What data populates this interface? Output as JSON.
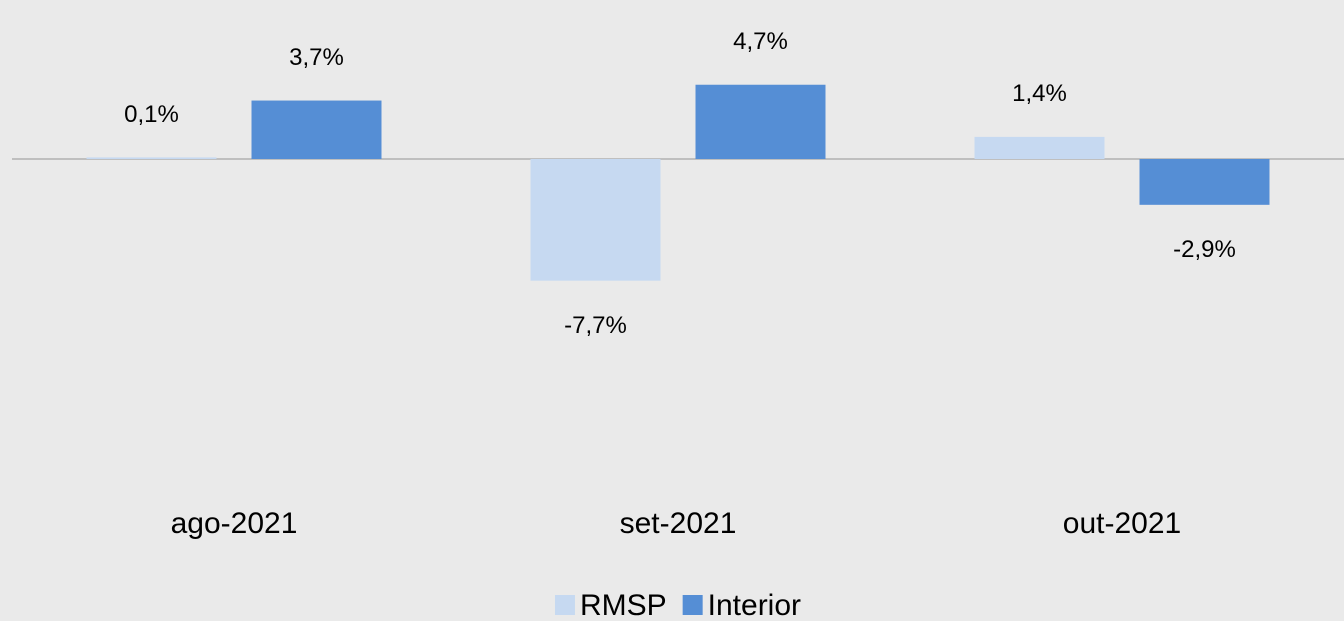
{
  "chart_data": {
    "type": "bar",
    "categories": [
      "ago-2021",
      "set-2021",
      "out-2021"
    ],
    "series": [
      {
        "name": "RMSP",
        "color": "#c6d9f1",
        "values": [
          0.1,
          -7.7,
          1.4
        ],
        "value_labels": [
          "0,1%",
          "-7,7%",
          "1,4%"
        ]
      },
      {
        "name": "Interior",
        "color": "#558ed5",
        "values": [
          3.7,
          4.7,
          -2.9
        ],
        "value_labels": [
          "3,7%",
          "4,7%",
          "-2,9%"
        ]
      }
    ],
    "ylim": [
      -20,
      10
    ],
    "legend": "bottom"
  }
}
